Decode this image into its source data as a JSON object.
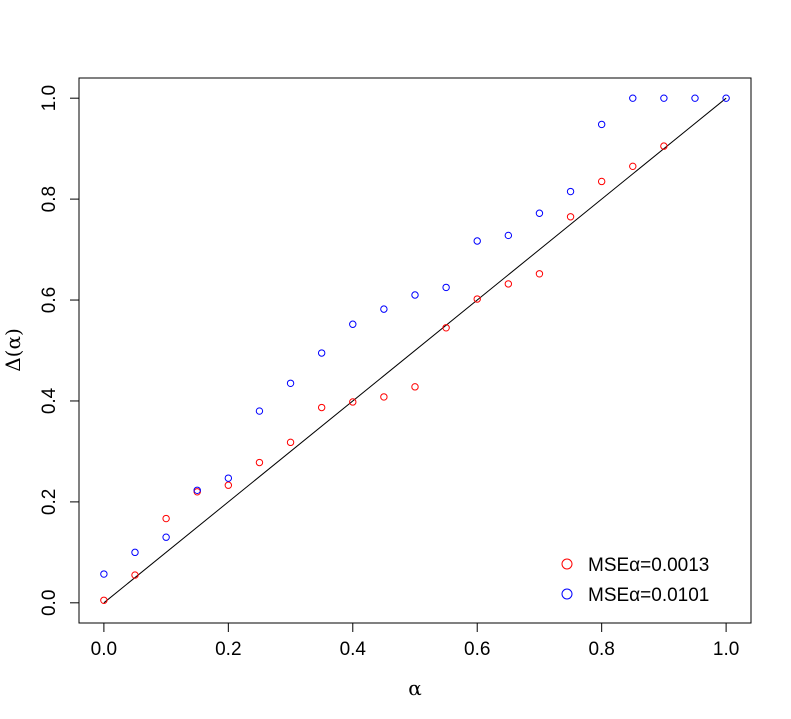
{
  "chart_data": {
    "type": "scatter",
    "xlabel": "α",
    "ylabel": "Δ(α)",
    "xlim": [
      -0.04,
      1.04
    ],
    "ylim": [
      -0.04,
      1.04
    ],
    "xticks": [
      0.0,
      0.2,
      0.4,
      0.6,
      0.8,
      1.0
    ],
    "yticks": [
      0.0,
      0.2,
      0.4,
      0.6,
      0.8,
      1.0
    ],
    "xtick_labels": [
      "0.0",
      "0.2",
      "0.4",
      "0.6",
      "0.8",
      "1.0"
    ],
    "ytick_labels": [
      "0.0",
      "0.2",
      "0.4",
      "0.6",
      "0.8",
      "1.0"
    ],
    "grid": false,
    "legend_position": "bottom-right",
    "reference_line": {
      "x": [
        0,
        1
      ],
      "y": [
        0,
        1
      ],
      "color": "#000000"
    },
    "series": [
      {
        "name": "MSEα=0.0013",
        "color": "#ff0000",
        "x": [
          0.0,
          0.05,
          0.1,
          0.15,
          0.2,
          0.25,
          0.3,
          0.35,
          0.4,
          0.45,
          0.5,
          0.55,
          0.6,
          0.65,
          0.7,
          0.75,
          0.8,
          0.85,
          0.9
        ],
        "y": [
          0.005,
          0.055,
          0.167,
          0.22,
          0.233,
          0.278,
          0.318,
          0.387,
          0.398,
          0.408,
          0.428,
          0.545,
          0.602,
          0.632,
          0.652,
          0.765,
          0.835,
          0.865,
          0.905
        ]
      },
      {
        "name": "MSEα=0.0101",
        "color": "#0000ff",
        "x": [
          0.0,
          0.05,
          0.1,
          0.15,
          0.2,
          0.25,
          0.3,
          0.35,
          0.4,
          0.45,
          0.5,
          0.55,
          0.6,
          0.65,
          0.7,
          0.75,
          0.8,
          0.85,
          0.9,
          0.95,
          1.0
        ],
        "y": [
          0.057,
          0.1,
          0.13,
          0.223,
          0.247,
          0.38,
          0.435,
          0.495,
          0.552,
          0.582,
          0.61,
          0.625,
          0.717,
          0.728,
          0.772,
          0.815,
          0.948,
          1.0,
          1.0,
          1.0,
          1.0
        ]
      }
    ]
  }
}
